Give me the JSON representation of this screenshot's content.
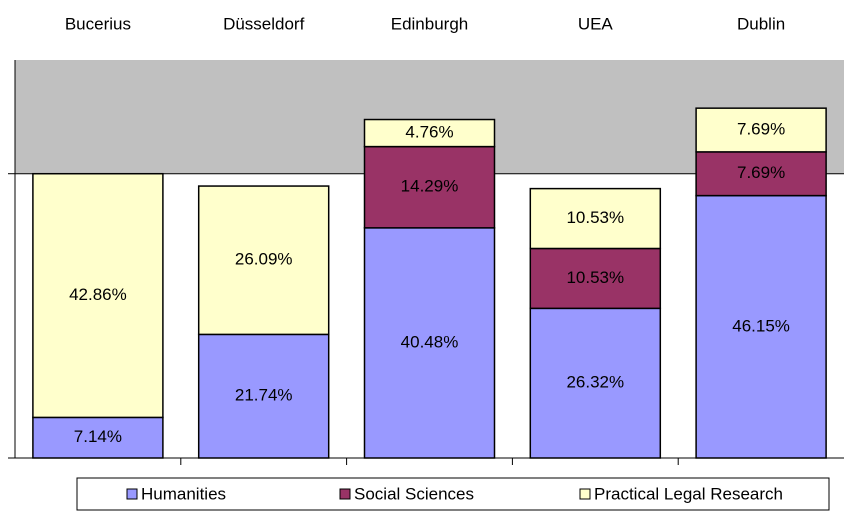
{
  "chart_data": {
    "type": "stacked_bar",
    "categories": [
      "Bucerius",
      "Düsseldorf",
      "Edinburgh",
      "UEA",
      "Dublin"
    ],
    "series": [
      {
        "name": "Humanities",
        "color": "#9999ff",
        "values": [
          7.14,
          21.74,
          40.48,
          26.32,
          46.15
        ],
        "value_labels": [
          "7.14%",
          "21.74%",
          "40.48%",
          "26.32%",
          "46.15%"
        ]
      },
      {
        "name": "Social Sciences",
        "color": "#993366",
        "values": [
          null,
          null,
          14.29,
          10.53,
          7.69
        ],
        "value_labels": [
          null,
          null,
          "14.29%",
          "10.53%",
          "7.69%"
        ]
      },
      {
        "name": "Practical Legal Research",
        "color": "#ffffcc",
        "values": [
          42.86,
          26.09,
          4.76,
          10.53,
          7.69
        ],
        "value_labels": [
          "42.86%",
          "26.09%",
          "4.76%",
          "10.53%",
          "7.69%"
        ]
      }
    ],
    "ylim": [
      0,
      70
    ],
    "yticks": [
      0,
      50
    ],
    "plot_background": "#c0c0c0",
    "legend": "bottom"
  }
}
